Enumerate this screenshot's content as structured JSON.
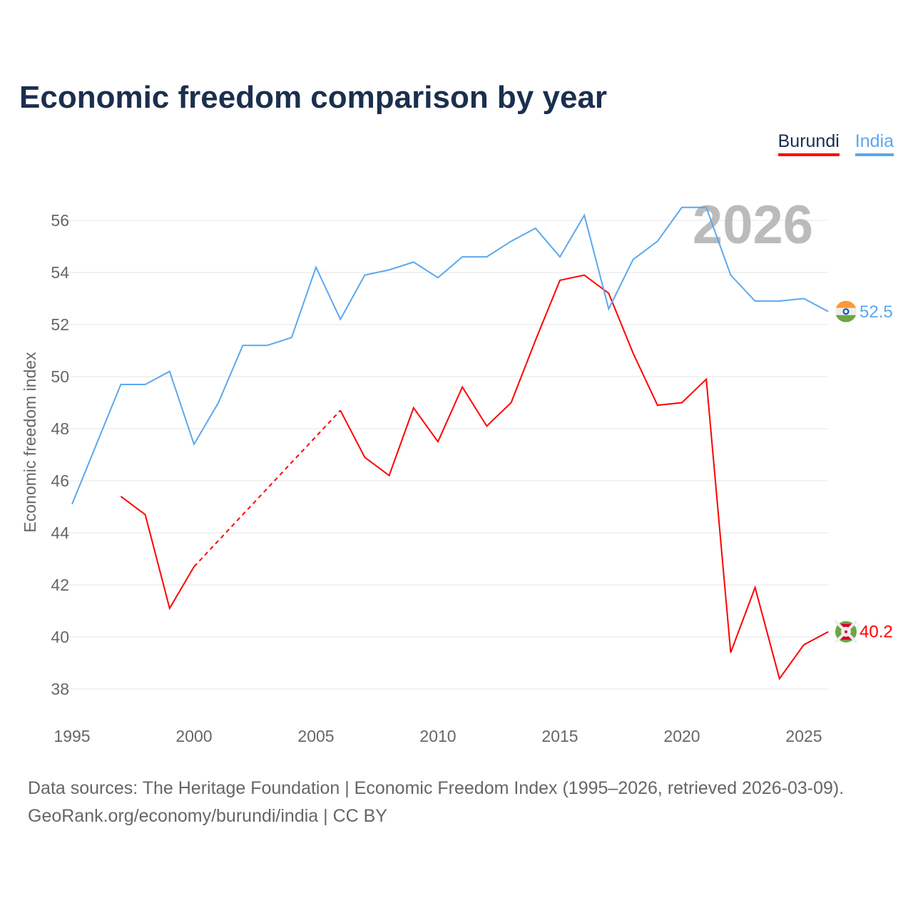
{
  "title": "Economic freedom comparison by year",
  "footer": {
    "line1": "Data sources: The Heritage Foundation | Economic Freedom Index (1995–2026, retrieved 2026-03-09).",
    "line2": "GeoRank.org/economy/burundi/india | CC BY"
  },
  "chart_data": {
    "type": "line",
    "title": "Economic freedom comparison by year",
    "xlabel": "",
    "ylabel": "Economic freedom index",
    "year_watermark": "2026",
    "xlim": [
      1995,
      2026
    ],
    "ylim": [
      37,
      57.5
    ],
    "x_ticks": [
      "1995",
      "2000",
      "2005",
      "2010",
      "2015",
      "2020",
      "2025"
    ],
    "y_ticks": [
      "38",
      "40",
      "42",
      "44",
      "46",
      "48",
      "50",
      "52",
      "54",
      "56"
    ],
    "grid": true,
    "legend_position": "top-right",
    "x": [
      1995,
      1996,
      1997,
      1998,
      1999,
      2000,
      2001,
      2002,
      2003,
      2004,
      2005,
      2006,
      2007,
      2008,
      2009,
      2010,
      2011,
      2012,
      2013,
      2014,
      2015,
      2016,
      2017,
      2018,
      2019,
      2020,
      2021,
      2022,
      2023,
      2024,
      2025,
      2026
    ],
    "series": [
      {
        "name": "Burundi",
        "color": "#ff0000",
        "end_label": "40.2",
        "values": [
          null,
          null,
          45.4,
          44.7,
          41.1,
          42.7,
          null,
          null,
          null,
          null,
          null,
          48.7,
          46.9,
          46.2,
          48.8,
          47.5,
          49.6,
          48.1,
          49.0,
          51.4,
          53.7,
          53.9,
          53.2,
          50.9,
          48.9,
          49.0,
          49.9,
          39.4,
          41.9,
          38.4,
          39.7,
          40.2
        ]
      },
      {
        "name": "India",
        "color": "#5ba8ee",
        "end_label": "52.5",
        "values": [
          45.1,
          47.4,
          49.7,
          49.7,
          50.2,
          47.4,
          49.0,
          51.2,
          51.2,
          51.5,
          54.2,
          52.2,
          53.9,
          54.1,
          54.4,
          53.8,
          54.6,
          54.6,
          55.2,
          55.7,
          54.6,
          56.2,
          52.6,
          54.5,
          55.2,
          56.5,
          56.5,
          53.9,
          52.9,
          52.9,
          53.0,
          52.5
        ]
      }
    ]
  }
}
